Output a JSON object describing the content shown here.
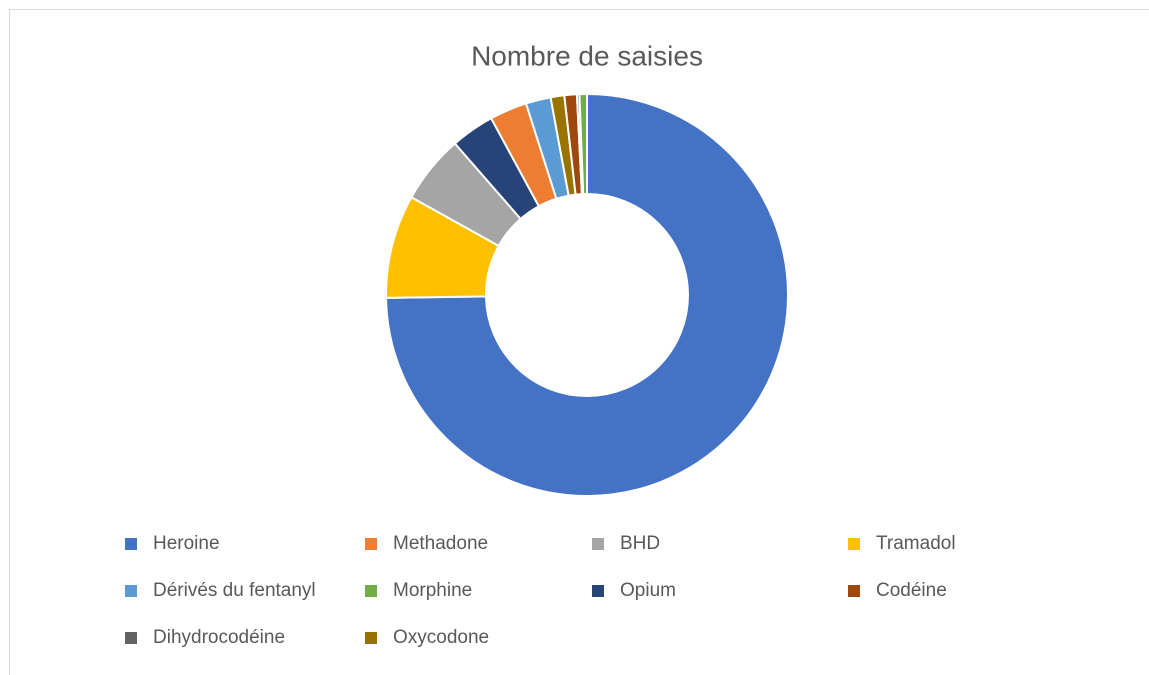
{
  "chart_data": {
    "type": "doughnut",
    "title": "Nombre de saisies",
    "categories": [
      "Heroine",
      "Tramadol",
      "BHD",
      "Opium",
      "Methadone",
      "Dérivés du fentanyl",
      "Oxycodone",
      "Codéine",
      "Dihydrocodéine",
      "Morphine"
    ],
    "values": [
      74.7,
      8.3,
      5.5,
      3.5,
      3.0,
      2.0,
      1.1,
      1.0,
      0.2,
      0.6
    ],
    "colors": [
      "#4472c4",
      "#ffc000",
      "#a5a5a5",
      "#264478",
      "#ed7d31",
      "#5b9bd5",
      "#997300",
      "#9e480e",
      "#636363",
      "#70ad47"
    ],
    "legend": "bottom"
  }
}
